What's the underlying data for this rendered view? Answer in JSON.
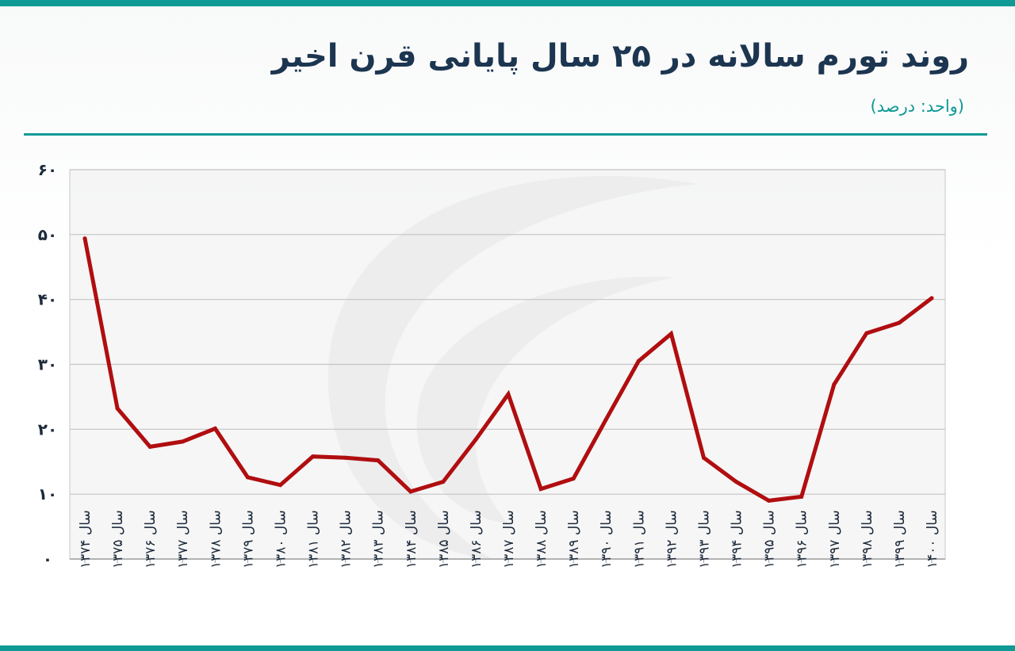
{
  "header": {
    "title": "روند تورم سالانه در ۲۵ سال پایانی قرن اخیر",
    "unit": "(واحد: درصد)"
  },
  "colors": {
    "accent": "#0f9a96",
    "line": "#b00e10",
    "title": "#1c3550"
  },
  "chart_data": {
    "type": "line",
    "title": "روند تورم سالانه در ۲۵ سال پایانی قرن اخیر",
    "ylabel": "",
    "xlabel": "",
    "ylim": [
      0,
      60
    ],
    "grid": true,
    "y_ticks": [
      {
        "value": 0,
        "label": "۰"
      },
      {
        "value": 10,
        "label": "۱۰"
      },
      {
        "value": 20,
        "label": "۲۰"
      },
      {
        "value": 30,
        "label": "۳۰"
      },
      {
        "value": 40,
        "label": "۴۰"
      },
      {
        "value": 50,
        "label": "۵۰"
      },
      {
        "value": 60,
        "label": "۶۰"
      }
    ],
    "categories": [
      "سال ۱۳۷۴",
      "سال ۱۳۷۵",
      "سال ۱۳۷۶",
      "سال ۱۳۷۷",
      "سال ۱۳۷۸",
      "سال ۱۳۷۹",
      "سال ۱۳۸۰",
      "سال ۱۳۸۱",
      "سال ۱۳۸۲",
      "سال ۱۳۸۳",
      "سال ۱۳۸۴",
      "سال ۱۳۸۵",
      "سال ۱۳۸۶",
      "سال ۱۳۸۷",
      "سال ۱۳۸۸",
      "سال ۱۳۸۹",
      "سال ۱۳۹۰",
      "سال ۱۳۹۱",
      "سال ۱۳۹۲",
      "سال ۱۳۹۳",
      "سال ۱۳۹۴",
      "سال ۱۳۹۵",
      "سال ۱۳۹۶",
      "سال ۱۳۹۷",
      "سال ۱۳۹۸",
      "سال ۱۳۹۹",
      "سال ۱۴۰۰"
    ],
    "series": [
      {
        "values": [
          49.4,
          23.2,
          17.3,
          18.1,
          20.1,
          12.6,
          11.4,
          15.8,
          15.6,
          15.2,
          10.4,
          11.9,
          18.4,
          25.4,
          10.8,
          12.4,
          21.5,
          30.5,
          34.7,
          15.6,
          11.9,
          9.0,
          9.6,
          26.9,
          34.8,
          36.4,
          40.2
        ]
      }
    ]
  }
}
